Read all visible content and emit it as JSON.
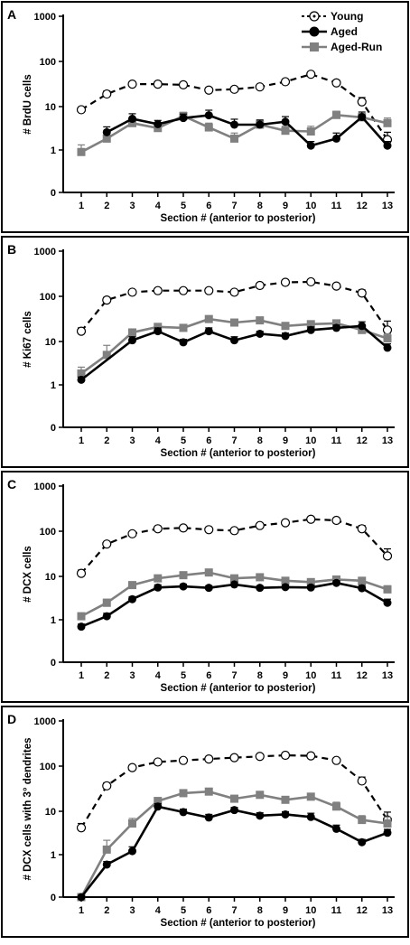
{
  "legend": {
    "items": [
      {
        "label": "Young",
        "key": "young"
      },
      {
        "label": "Aged",
        "key": "aged"
      },
      {
        "label": "Aged-Run",
        "key": "agedrun"
      }
    ]
  },
  "colors": {
    "young": "#000000",
    "aged": "#000000",
    "agedrun": "#808080",
    "frame": "#000000",
    "background": "#ffffff"
  },
  "chart_data": [
    {
      "type": "line",
      "panel_label": "A",
      "ylabel": "# BrdU cells",
      "xlabel": "Section # (anterior to posterior)",
      "y_scale": "log (0 shown at baseline)",
      "y_ticks": [
        "0",
        "1",
        "10",
        "100",
        "1000"
      ],
      "x": [
        1,
        2,
        3,
        4,
        5,
        6,
        7,
        8,
        9,
        10,
        11,
        12,
        13
      ],
      "legend": "top-right",
      "series": [
        {
          "name": "Young",
          "key": "young",
          "values": [
            8,
            18,
            30,
            30,
            29,
            22,
            23,
            26,
            34,
            50,
            32,
            12,
            1.7
          ],
          "errors": [
            1,
            3,
            4,
            4,
            3,
            3,
            3,
            3,
            4,
            6,
            5,
            3,
            0.8
          ]
        },
        {
          "name": "Aged",
          "key": "aged",
          "values": [
            null,
            2.5,
            5,
            3.8,
            5.2,
            6,
            3.7,
            3.7,
            4.3,
            1.25,
            1.8,
            5.5,
            1.25
          ],
          "errors": [
            null,
            0.8,
            1.5,
            0.8,
            1.2,
            1.8,
            1.2,
            1,
            1.3,
            0.3,
            0.6,
            1.6,
            0.3
          ]
        },
        {
          "name": "Aged-Run",
          "key": "agedrun",
          "values": [
            0.9,
            1.8,
            4,
            3.1,
            5.8,
            3.2,
            1.8,
            3.7,
            2.7,
            2.6,
            6.1,
            5.4,
            4
          ],
          "errors": [
            0.4,
            0.3,
            0.8,
            0.6,
            1.2,
            0.8,
            0.6,
            1,
            0.7,
            0.8,
            1.3,
            1.2,
            1.2
          ]
        }
      ]
    },
    {
      "type": "line",
      "panel_label": "B",
      "ylabel": "# Ki67 cells",
      "xlabel": "Section # (anterior to posterior)",
      "y_scale": "log (0 shown at baseline)",
      "y_ticks": [
        "0",
        "1",
        "10",
        "100",
        "1000"
      ],
      "x": [
        1,
        2,
        3,
        4,
        5,
        6,
        7,
        8,
        9,
        10,
        11,
        12,
        13
      ],
      "series": [
        {
          "name": "Young",
          "key": "young",
          "values": [
            16,
            80,
            120,
            130,
            130,
            130,
            120,
            170,
            200,
            205,
            165,
            115,
            17
          ],
          "errors": [
            3,
            12,
            15,
            15,
            12,
            15,
            12,
            20,
            25,
            25,
            20,
            20,
            10
          ]
        },
        {
          "name": "Aged",
          "key": "aged",
          "values": [
            1.3,
            null,
            10,
            16,
            9,
            16,
            10,
            14,
            12.5,
            17,
            19,
            21,
            6.8
          ],
          "errors": [
            0.2,
            null,
            2,
            3,
            1.5,
            3,
            2,
            2,
            2,
            3,
            3,
            5,
            1.5
          ]
        },
        {
          "name": "Aged-Run",
          "key": "agedrun",
          "values": [
            1.8,
            4.7,
            15,
            20,
            19,
            30,
            25,
            28,
            21,
            23,
            24,
            17,
            11
          ],
          "errors": [
            0.7,
            3,
            3,
            3,
            3,
            4,
            3,
            4,
            4,
            3,
            4,
            3,
            3
          ]
        }
      ]
    },
    {
      "type": "line",
      "panel_label": "C",
      "ylabel": "# DCX cells",
      "xlabel": "Section # (anterior to posterior)",
      "y_scale": "log (0 shown at baseline)",
      "y_ticks": [
        "0",
        "1",
        "10",
        "100",
        "1000"
      ],
      "x": [
        1,
        2,
        3,
        4,
        5,
        6,
        7,
        8,
        9,
        10,
        11,
        12,
        13
      ],
      "series": [
        {
          "name": "Young",
          "key": "young",
          "values": [
            11,
            50,
            85,
            110,
            115,
            105,
            100,
            130,
            150,
            180,
            170,
            110,
            27
          ],
          "errors": [
            2,
            6,
            8,
            10,
            10,
            10,
            10,
            12,
            15,
            20,
            20,
            20,
            12
          ]
        },
        {
          "name": "Aged",
          "key": "aged",
          "values": [
            0.7,
            1.2,
            2.9,
            5.3,
            5.6,
            5.2,
            6.2,
            5.2,
            5.4,
            5.3,
            6.7,
            5.1,
            2.4
          ],
          "errors": [
            0.1,
            0.2,
            0.4,
            0.8,
            0.7,
            0.6,
            0.8,
            0.6,
            0.6,
            0.6,
            0.8,
            0.8,
            0.5
          ]
        },
        {
          "name": "Aged-Run",
          "key": "agedrun",
          "values": [
            1.2,
            2.4,
            6,
            8.5,
            10,
            11.5,
            8.5,
            9,
            7.5,
            7,
            8,
            7.5,
            4.8
          ],
          "errors": [
            0.2,
            0.5,
            0.8,
            1,
            1,
            1.5,
            1,
            1,
            1,
            1,
            1,
            1,
            1
          ]
        }
      ]
    },
    {
      "type": "line",
      "panel_label": "D",
      "ylabel": "# DCX cells with 3° dendrites",
      "xlabel": "Section # (anterior to posterior)",
      "y_scale": "log (0 shown at baseline)",
      "y_ticks": [
        "0",
        "1",
        "10",
        "100",
        "1000"
      ],
      "x": [
        1,
        2,
        3,
        4,
        5,
        6,
        7,
        8,
        9,
        10,
        11,
        12,
        13
      ],
      "series": [
        {
          "name": "Young",
          "key": "young",
          "values": [
            4,
            35,
            90,
            120,
            130,
            140,
            150,
            160,
            170,
            165,
            130,
            45,
            6
          ],
          "errors": [
            1,
            6,
            10,
            12,
            12,
            12,
            15,
            15,
            18,
            18,
            15,
            10,
            3
          ]
        },
        {
          "name": "Aged",
          "key": "aged",
          "values": [
            0,
            0.6,
            1.2,
            12,
            9,
            6.8,
            10,
            7.5,
            8,
            7,
            3.8,
            1.9,
            3.1
          ],
          "errors": [
            0,
            0.1,
            0.3,
            2,
            1.5,
            1.2,
            1.5,
            1.2,
            1.2,
            1.5,
            0.8,
            0.3,
            0.6
          ]
        },
        {
          "name": "Aged-Run",
          "key": "agedrun",
          "values": [
            0,
            1.3,
            5,
            16,
            24,
            26,
            18,
            22,
            17,
            20,
            12,
            6,
            5
          ],
          "errors": [
            0,
            0.8,
            1.5,
            3,
            4,
            4,
            3,
            3,
            3,
            3,
            3,
            1.5,
            2
          ]
        }
      ]
    }
  ]
}
